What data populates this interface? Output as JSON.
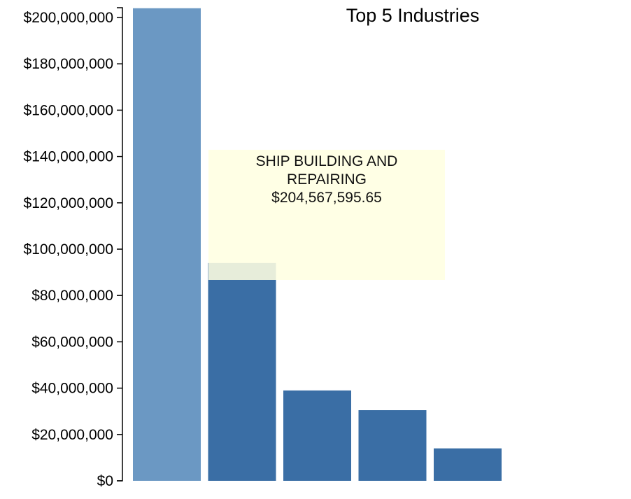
{
  "chart_data": {
    "type": "bar",
    "title": "Top 5 Industries",
    "categories": [
      "SHIP BUILDING AND REPAIRING",
      "",
      "",
      "",
      ""
    ],
    "values": [
      204567595.65,
      94000000,
      39000000,
      30500000,
      14000000
    ],
    "ylim": [
      0,
      200000000
    ],
    "ytick_values": [
      0,
      20000000,
      40000000,
      60000000,
      80000000,
      100000000,
      120000000,
      140000000,
      160000000,
      180000000,
      200000000
    ],
    "ytick_labels": [
      "$0",
      "$20,000,000",
      "$40,000,000",
      "$60,000,000",
      "$80,000,000",
      "$100,000,000",
      "$120,000,000",
      "$140,000,000",
      "$160,000,000",
      "$180,000,000",
      "$200,000,000"
    ],
    "highlighted_index": 0,
    "bar_color": "#3a6ea5",
    "highlight_color": "#6b98c3",
    "tooltip": {
      "name": "SHIP BUILDING AND REPAIRING",
      "value": "$204,567,595.65"
    }
  }
}
